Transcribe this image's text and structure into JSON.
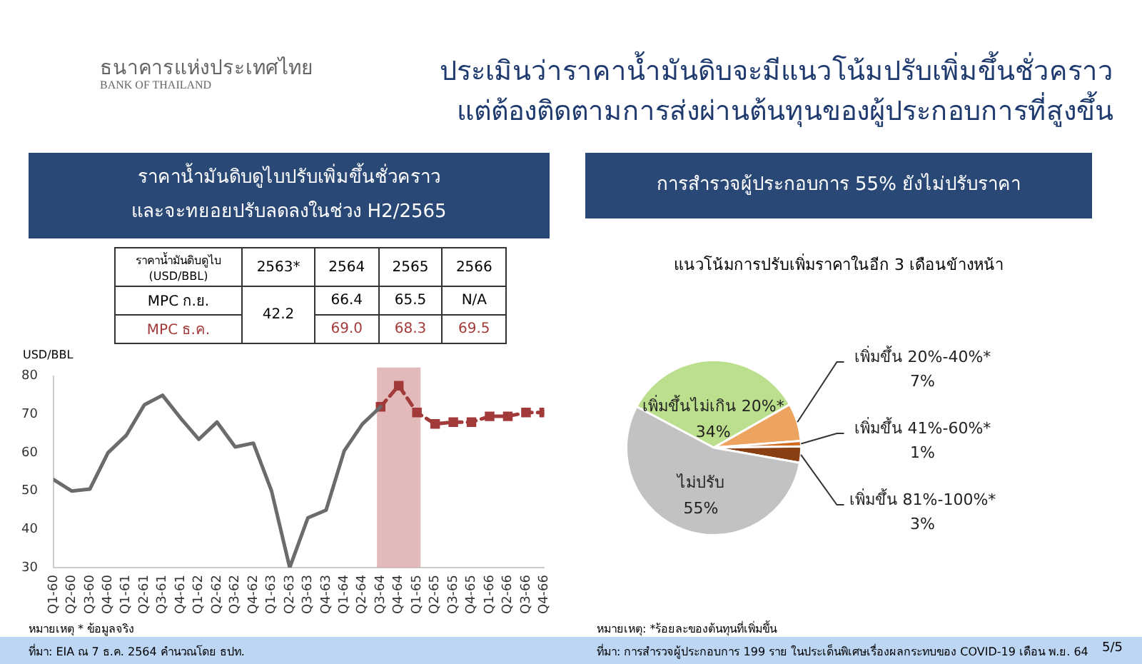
{
  "chart_data": [
    {
      "type": "other",
      "title": "ประเมินว่าราคาน้ำมันดิบจะมีแนวโน้มปรับเพิ่มขึ้นชั่วคราว",
      "subtitle": "แต่ต้องติดตามการส่งผ่านต้นทุนของผู้ประกอบการที่สูงขึ้น",
      "annotations": [
        "ธนาคารแห่งประเทศไทย",
        "BANK OF THAILAND"
      ]
    },
    {
      "type": "line",
      "title": "ราคาน้ำมันดิบดูไบปรับเพิ่มขึ้นชั่วคราว",
      "subtitle": "และจะทยอยปรับลดลงในช่วง H2/2565",
      "ylabel": "USD/BBL",
      "categories": [
        "Q1-60",
        "Q2-60",
        "Q3-60",
        "Q4-60",
        "Q1-61",
        "Q2-61",
        "Q3-61",
        "Q4-61",
        "Q1-62",
        "Q2-62",
        "Q3-62",
        "Q4-62",
        "Q1-63",
        "Q2-63",
        "Q3-63",
        "Q4-63",
        "Q1-64",
        "Q2-64",
        "Q3-64",
        "Q4-64",
        "Q1-65",
        "Q2-65",
        "Q3-65",
        "Q4-65",
        "Q1-66",
        "Q2-66",
        "Q3-66",
        "Q4-66"
      ],
      "series": [
        {
          "color": "#6b6b6b",
          "marker": "none",
          "line_style": "solid",
          "values": [
            53,
            50,
            50.5,
            60,
            64.5,
            72.5,
            75,
            69,
            63.5,
            68,
            61.5,
            62.5,
            50,
            30,
            43,
            45,
            60.5,
            67.5,
            72,
            null,
            null,
            null,
            null,
            null,
            null,
            null,
            null,
            null
          ]
        },
        {
          "color": "#a33a3a",
          "marker": "square",
          "line_style": "dashed",
          "values": [
            null,
            null,
            null,
            null,
            null,
            null,
            null,
            null,
            null,
            null,
            null,
            null,
            null,
            null,
            null,
            null,
            null,
            null,
            72,
            77.5,
            70.5,
            67.5,
            68,
            68,
            69.5,
            69.5,
            70.5,
            70.5
          ]
        }
      ],
      "ylim": [
        30,
        80
      ],
      "yticks": [
        30,
        40,
        50,
        60,
        70,
        80
      ],
      "grid": false,
      "legend": false,
      "bands": [
        {
          "axis": "x",
          "from": "Q3-64",
          "to": "Q1-65",
          "color": "#d9a3a3"
        }
      ],
      "annotations": [
        "หมายเหตุ * ข้อมูลจริง",
        "ที่มา: EIA ณ 7 ธ.ค. 2564 คำนวณโดย ธปท.",
        "ราคาน้ำมันดิบดูไบ (USD/BBL)",
        "2563*",
        "2564",
        "2565",
        "2566",
        "MPC ก.ย.",
        "42.2",
        "66.4",
        "65.5",
        "N/A",
        "MPC ธ.ค.",
        "69.0",
        "68.3",
        "69.5"
      ]
    },
    {
      "type": "pie",
      "title": "การสำรวจผู้ประกอบการ 55% ยังไม่ปรับราคา",
      "subtitle": "แนวโน้มการปรับเพิ่มราคาในอีก 3 เดือนข้างหน้า",
      "categories": [
        "เพิ่มขึ้นไม่เกิน 20%*",
        "เพิ่มขึ้น 20%-40%*",
        "เพิ่มขึ้น 41%-60%*",
        "เพิ่มขึ้น 81%-100%*",
        "ไม่ปรับ"
      ],
      "values": [
        34,
        7,
        1,
        3,
        55
      ],
      "value_labels": [
        "34%",
        "7%",
        "1%",
        "3%",
        "55%"
      ],
      "colors": [
        "#bcdf8e",
        "#eda461",
        "#d26a1e",
        "#8a3f12",
        "#c2c2c2"
      ],
      "legend": false,
      "annotations": [
        "หมายเหตุ: *ร้อยละของต้นทุนที่เพิ่มขึ้น",
        "ที่มา: การสำรวจผู้ประกอบการ 199 ราย ในประเด็นพิเศษเรื่องผลกระทบของ COVID-19 เดือน พ.ย. 64",
        "5/5"
      ]
    }
  ]
}
